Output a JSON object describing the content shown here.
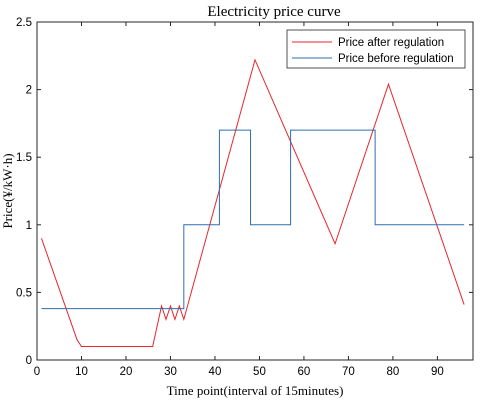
{
  "chart_data": {
    "type": "line",
    "title": "Electricity price curve",
    "xlabel": "Time point(interval of 15minutes)",
    "ylabel": "Price(¥/kW·h)",
    "xlim": [
      0,
      98
    ],
    "ylim": [
      0,
      2.5
    ],
    "xticks": [
      0,
      10,
      20,
      30,
      40,
      50,
      60,
      70,
      80,
      90
    ],
    "yticks": [
      0,
      0.5,
      1,
      1.5,
      2,
      2.5
    ],
    "ytick_labels": [
      "0",
      "0.5",
      "1",
      "1.5",
      "2",
      "2.5"
    ],
    "grid": false,
    "legend_position": "top-right",
    "series": [
      {
        "name": "Price after regulation",
        "color": "#e8262a",
        "points": [
          [
            1,
            0.9
          ],
          [
            9,
            0.15
          ],
          [
            10,
            0.1
          ],
          [
            26,
            0.1
          ],
          [
            28,
            0.4
          ],
          [
            29,
            0.3
          ],
          [
            30,
            0.4
          ],
          [
            31,
            0.3
          ],
          [
            32,
            0.4
          ],
          [
            33,
            0.3
          ],
          [
            49,
            2.22
          ],
          [
            67,
            0.86
          ],
          [
            79,
            2.04
          ],
          [
            96,
            0.41
          ]
        ]
      },
      {
        "name": "Price before regulation",
        "color": "#2e6fae",
        "points": [
          [
            1,
            0.38
          ],
          [
            33,
            0.38
          ],
          [
            33,
            1.0
          ],
          [
            41,
            1.0
          ],
          [
            41,
            1.7
          ],
          [
            48,
            1.7
          ],
          [
            48,
            1.0
          ],
          [
            57,
            1.0
          ],
          [
            57,
            1.7
          ],
          [
            76,
            1.7
          ],
          [
            76,
            1.0
          ],
          [
            96,
            1.0
          ]
        ]
      }
    ]
  }
}
